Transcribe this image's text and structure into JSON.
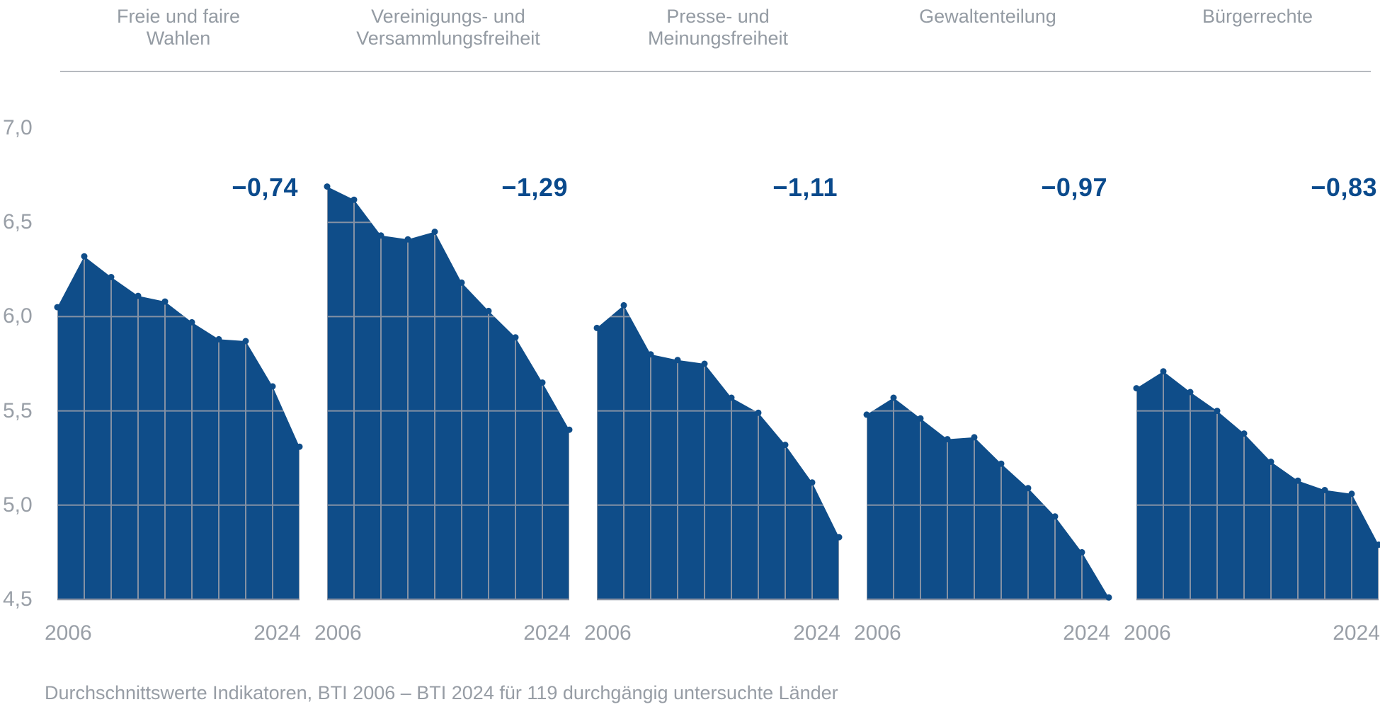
{
  "caption": "Durchschnittswerte Indikatoren, BTI 2006 – BTI 2024 für 119 durchgängig untersuchte Länder",
  "colors": {
    "area_fill": "#0f4d89",
    "dot": "#0f4d89",
    "grid_line": "#8491a4",
    "baseline": "#8a92a2",
    "change_label_blue": "#0a4a8c",
    "text_gray": "#979da5",
    "separator_gray": "#b6babf"
  },
  "yaxis": {
    "ticks": [
      {
        "label": "7,0",
        "value": 7.0
      },
      {
        "label": "6,5",
        "value": 6.5
      },
      {
        "label": "6,0",
        "value": 6.0
      },
      {
        "label": "5,5",
        "value": 5.5
      },
      {
        "label": "5,0",
        "value": 5.0
      },
      {
        "label": "4,5",
        "value": 4.5
      }
    ]
  },
  "xaxis": {
    "start_label": "2006",
    "end_label": "2024"
  },
  "chart_data": {
    "type": "area",
    "title": "",
    "x": [
      2006,
      2008,
      2010,
      2012,
      2014,
      2016,
      2018,
      2020,
      2022,
      2024
    ],
    "ylim": [
      4.5,
      7.0
    ],
    "yticks": [
      4.5,
      5.0,
      5.5,
      6.0,
      6.5,
      7.0
    ],
    "grid": "clipped-inside-area",
    "legend_position": "none",
    "series": [
      {
        "name": "Freie und faire Wahlen",
        "slug": "freie-und-faire-wahlen",
        "title_lines": [
          "Freie und faire",
          "Wahlen"
        ],
        "change_label": "−0,74",
        "values": [
          6.05,
          6.32,
          6.21,
          6.11,
          6.08,
          5.97,
          5.88,
          5.87,
          5.63,
          5.31
        ]
      },
      {
        "name": "Vereinigungs- und Versammlungsfreiheit",
        "slug": "vereinigungs-und-versammlungsfreiheit",
        "title_lines": [
          "Vereinigungs- und",
          "Versammlungsfreiheit"
        ],
        "change_label": "−1,29",
        "values": [
          6.69,
          6.62,
          6.43,
          6.41,
          6.45,
          6.18,
          6.03,
          5.89,
          5.65,
          5.4
        ]
      },
      {
        "name": "Presse- und Meinungsfreiheit",
        "slug": "presse-und-meinungsfreiheit",
        "title_lines": [
          "Presse- und",
          "Meinungsfreiheit"
        ],
        "change_label": "−1,11",
        "values": [
          5.94,
          6.06,
          5.8,
          5.77,
          5.75,
          5.57,
          5.49,
          5.32,
          5.12,
          4.83
        ]
      },
      {
        "name": "Gewaltenteilung",
        "slug": "gewaltenteilung",
        "title_lines": [
          "Gewaltenteilung"
        ],
        "change_label": "−0,97",
        "values": [
          5.48,
          5.57,
          5.46,
          5.35,
          5.36,
          5.22,
          5.09,
          4.94,
          4.75,
          4.51
        ]
      },
      {
        "name": "Bürgerrechte",
        "slug": "buergerrechte",
        "title_lines": [
          "Bürgerrechte"
        ],
        "change_label": "−0,83",
        "values": [
          5.62,
          5.71,
          5.6,
          5.5,
          5.38,
          5.23,
          5.13,
          5.08,
          5.06,
          4.79
        ]
      }
    ]
  }
}
